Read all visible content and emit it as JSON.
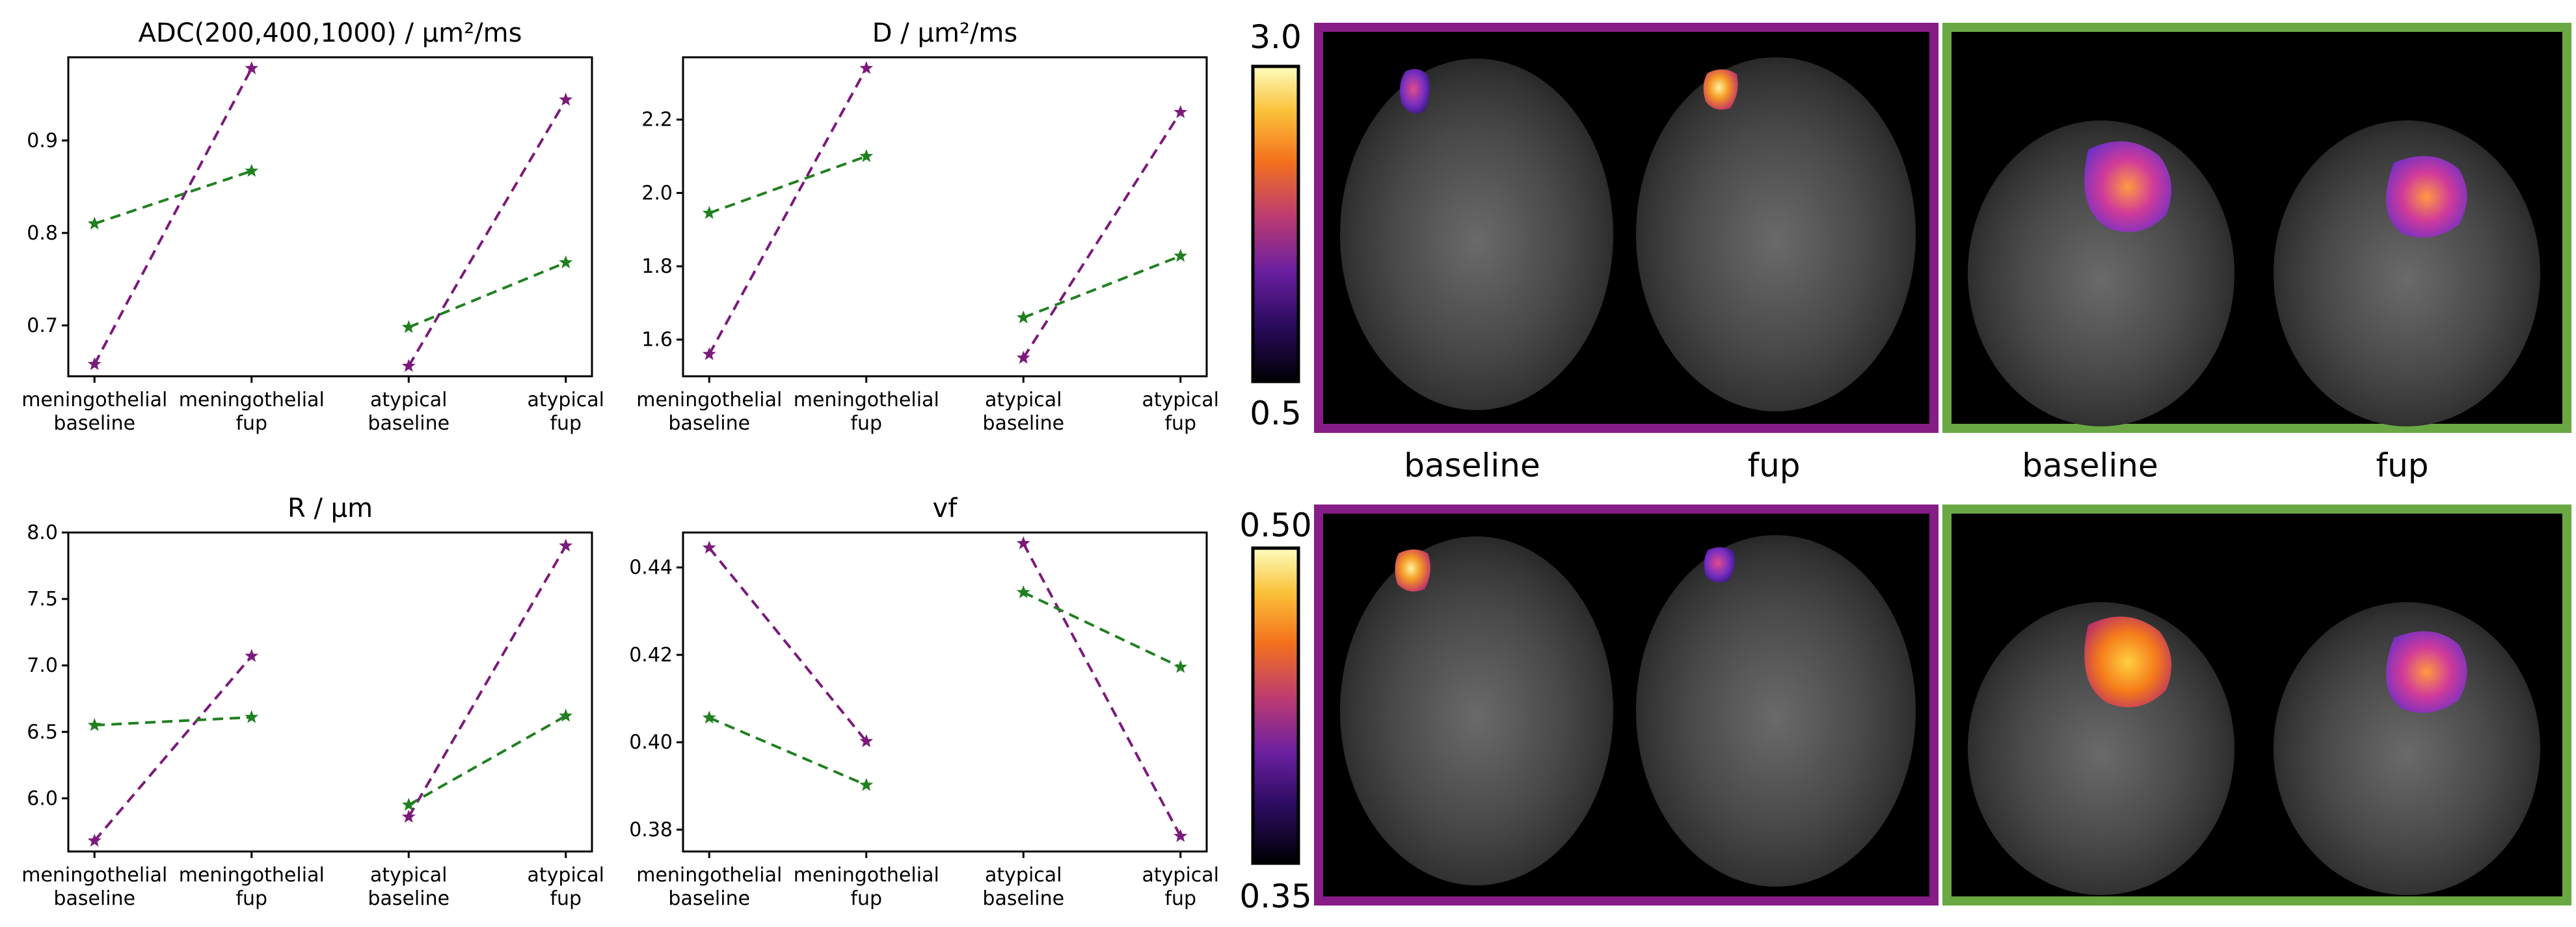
{
  "colors": {
    "series_a": "#7b1a7b",
    "series_b": "#208020",
    "frame_a": "#861d86",
    "frame_b": "#6aa844"
  },
  "chart_data": [
    {
      "type": "line",
      "title": "ADC(200,400,1000) / μm²/ms",
      "categories": [
        "meningothelial\nbaseline",
        "meningothelial\nfup",
        "atypical\nbaseline",
        "atypical\nfup"
      ],
      "yticks": [
        "0.7",
        "0.8",
        "0.9"
      ],
      "yticks_values": [
        0.7,
        0.8,
        0.9
      ],
      "ylim": [
        0.645,
        0.99
      ],
      "series": [
        {
          "segments": [
            [
              0.658,
              0.978
            ],
            [
              0.656,
              0.944
            ]
          ]
        },
        {
          "segments": [
            [
              0.81,
              0.867
            ],
            [
              0.698,
              0.768
            ]
          ]
        }
      ]
    },
    {
      "type": "line",
      "title": "D / μm²/ms",
      "categories": [
        "meningothelial\nbaseline",
        "meningothelial\nfup",
        "atypical\nbaseline",
        "atypical\nfup"
      ],
      "yticks": [
        "1.6",
        "1.8",
        "2.0",
        "2.2"
      ],
      "yticks_values": [
        1.6,
        1.8,
        2.0,
        2.2
      ],
      "ylim": [
        1.5,
        2.37
      ],
      "series": [
        {
          "segments": [
            [
              1.56,
              2.34
            ],
            [
              1.55,
              2.22
            ]
          ]
        },
        {
          "segments": [
            [
              1.945,
              2.1
            ],
            [
              1.66,
              1.828
            ]
          ]
        }
      ]
    },
    {
      "type": "line",
      "title": "R / μm",
      "categories": [
        "meningothelial\nbaseline",
        "meningothelial\nfup",
        "atypical\nbaseline",
        "atypical\nfup"
      ],
      "yticks": [
        "6.0",
        "6.5",
        "7.0",
        "7.5",
        "8.0"
      ],
      "yticks_values": [
        6.0,
        6.5,
        7.0,
        7.5,
        8.0
      ],
      "ylim": [
        5.6,
        8.0
      ],
      "series": [
        {
          "segments": [
            [
              5.68,
              7.07
            ],
            [
              5.86,
              7.9
            ]
          ]
        },
        {
          "segments": [
            [
              6.55,
              6.61
            ],
            [
              5.95,
              6.62
            ]
          ]
        }
      ]
    },
    {
      "type": "line",
      "title": "vf",
      "categories": [
        "meningothelial\nbaseline",
        "meningothelial\nfup",
        "atypical\nbaseline",
        "atypical\nfup"
      ],
      "yticks": [
        "0.38",
        "0.40",
        "0.42",
        "0.44"
      ],
      "yticks_values": [
        0.38,
        0.4,
        0.42,
        0.44
      ],
      "ylim": [
        0.375,
        0.448
      ],
      "series": [
        {
          "segments": [
            [
              0.4445,
              0.4002
            ],
            [
              0.4455,
              0.3785
            ]
          ]
        },
        {
          "segments": [
            [
              0.4056,
              0.3902
            ],
            [
              0.4343,
              0.4172
            ]
          ]
        }
      ]
    }
  ],
  "colorbars": [
    {
      "max_label": "3.0",
      "min_label": "0.5"
    },
    {
      "max_label": "0.50",
      "min_label": "0.35"
    }
  ],
  "image_panel_labels": [
    "baseline",
    "fup",
    "baseline",
    "fup"
  ]
}
